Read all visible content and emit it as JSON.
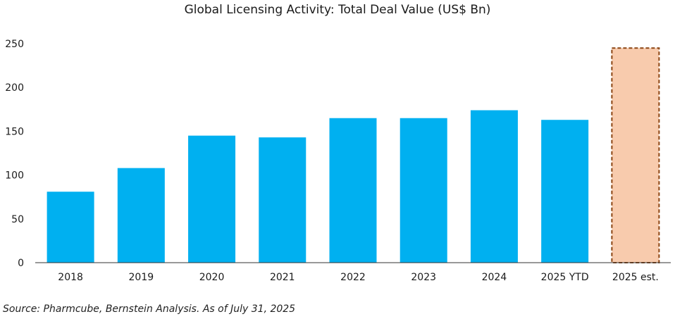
{
  "chart_data": {
    "type": "bar",
    "title": "Global Licensing Activity: Total Deal Value (US$ Bn)",
    "categories": [
      "2018",
      "2019",
      "2020",
      "2021",
      "2022",
      "2023",
      "2024",
      "2025 YTD",
      "2025 est."
    ],
    "values": [
      81,
      108,
      145,
      143,
      165,
      165,
      174,
      163,
      245
    ],
    "estimated": [
      false,
      false,
      false,
      false,
      false,
      false,
      false,
      false,
      true
    ],
    "ylim": [
      0,
      250
    ],
    "yticks": [
      0,
      50,
      100,
      150,
      200,
      250
    ],
    "xlabel": "",
    "ylabel": "",
    "grid": false
  },
  "colors": {
    "bar": "#00b0f0",
    "estimate_fill": "#f8cbad",
    "estimate_border": "#8b4513",
    "axis": "#333333",
    "text": "#1a1a1a"
  },
  "footer": {
    "source": "Source: Pharmcube, Bernstein Analysis. As of July 31, 2025"
  }
}
